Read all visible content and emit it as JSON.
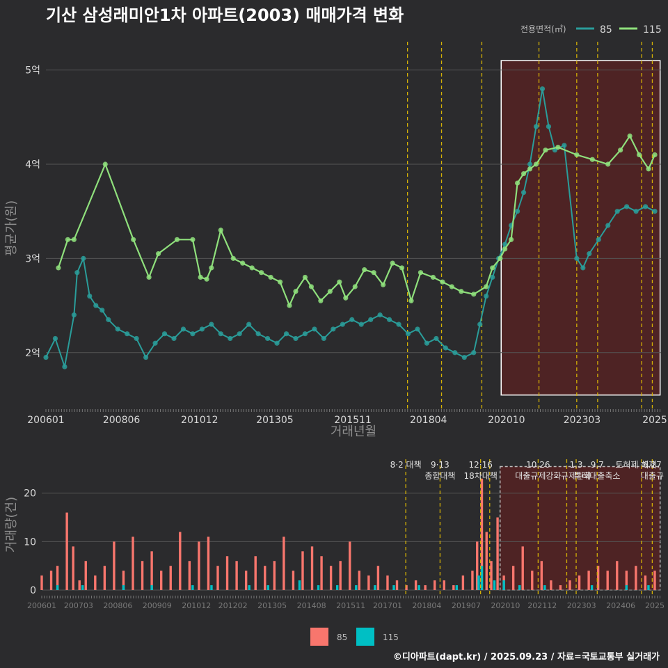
{
  "title": "기산 삼성래미안1차 아파트(2003) 매매가격 변화",
  "footer": "©디아파트(dapt.kr) / 2025.09.23 / 자료=국토교통부 실거래가",
  "colors": {
    "background": "#2b2b2d",
    "line85": "#2a9d9a",
    "line115": "#8fe07c",
    "bar85": "#f8766d",
    "bar115": "#00bfc4",
    "vline": "#d4b106",
    "highlight": "#6b1e1e"
  },
  "chart_data": [
    {
      "type": "line",
      "title": "기산 삼성래미안1차 아파트(2003) 매매가격 변화",
      "xlabel": "거래년월",
      "ylabel": "평균가(원)",
      "ylim": [
        1.4,
        5.3
      ],
      "yticks": [
        "2억",
        "3억",
        "4억",
        "5억"
      ],
      "ytick_values": [
        2,
        3,
        4,
        5
      ],
      "xticks": [
        "200601",
        "200806",
        "201012",
        "201305",
        "201511",
        "201804",
        "202010",
        "202303",
        "2025"
      ],
      "xtick_values": [
        2006.0,
        2008.42,
        2010.92,
        2013.33,
        2015.83,
        2018.25,
        2020.75,
        2023.17,
        2025.5
      ],
      "xlim": [
        2006.0,
        2025.7
      ],
      "legend_title": "전용면적(㎡)",
      "legend_position": "top-right",
      "highlight_range": [
        2020.58,
        2025.67
      ],
      "event_lines": [
        2017.58,
        2018.67,
        2019.96,
        2021.79,
        2023.0,
        2023.67,
        2025.08,
        2025.42
      ],
      "series": [
        {
          "name": "85",
          "x": [
            2006.0,
            2006.3,
            2006.6,
            2006.9,
            2007.0,
            2007.2,
            2007.4,
            2007.6,
            2007.8,
            2008.0,
            2008.3,
            2008.6,
            2008.9,
            2009.2,
            2009.5,
            2009.8,
            2010.1,
            2010.4,
            2010.7,
            2011.0,
            2011.3,
            2011.6,
            2011.9,
            2012.2,
            2012.5,
            2012.8,
            2013.1,
            2013.4,
            2013.7,
            2014.0,
            2014.3,
            2014.6,
            2014.9,
            2015.2,
            2015.5,
            2015.8,
            2016.1,
            2016.4,
            2016.7,
            2017.0,
            2017.3,
            2017.6,
            2017.9,
            2018.2,
            2018.5,
            2018.8,
            2019.1,
            2019.4,
            2019.7,
            2019.9,
            2020.1,
            2020.3,
            2020.5,
            2020.7,
            2020.9,
            2021.1,
            2021.3,
            2021.5,
            2021.7,
            2021.9,
            2022.1,
            2022.3,
            2022.6,
            2023.0,
            2023.2,
            2023.4,
            2023.7,
            2024.0,
            2024.3,
            2024.6,
            2024.9,
            2025.2,
            2025.5
          ],
          "y": [
            1.95,
            2.15,
            1.85,
            2.4,
            2.85,
            3.0,
            2.6,
            2.5,
            2.45,
            2.35,
            2.25,
            2.2,
            2.15,
            1.95,
            2.1,
            2.2,
            2.15,
            2.25,
            2.2,
            2.25,
            2.3,
            2.2,
            2.15,
            2.2,
            2.3,
            2.2,
            2.15,
            2.1,
            2.2,
            2.15,
            2.2,
            2.25,
            2.15,
            2.25,
            2.3,
            2.35,
            2.3,
            2.35,
            2.4,
            2.35,
            2.3,
            2.2,
            2.25,
            2.1,
            2.15,
            2.05,
            2.0,
            1.95,
            2.0,
            2.3,
            2.6,
            2.8,
            3.0,
            3.15,
            3.35,
            3.5,
            3.7,
            4.0,
            4.4,
            4.8,
            4.4,
            4.15,
            4.2,
            3.0,
            2.9,
            3.05,
            3.2,
            3.35,
            3.5,
            3.55,
            3.5,
            3.55,
            3.5
          ]
        },
        {
          "name": "115",
          "x": [
            2006.4,
            2006.7,
            2006.9,
            2007.9,
            2008.8,
            2009.3,
            2009.6,
            2010.2,
            2010.7,
            2010.95,
            2011.15,
            2011.3,
            2011.6,
            2012.0,
            2012.3,
            2012.6,
            2012.9,
            2013.2,
            2013.5,
            2013.8,
            2014.0,
            2014.3,
            2014.5,
            2014.8,
            2015.1,
            2015.4,
            2015.6,
            2015.9,
            2016.2,
            2016.5,
            2016.8,
            2017.1,
            2017.4,
            2017.7,
            2018.0,
            2018.4,
            2018.7,
            2019.0,
            2019.3,
            2019.7,
            2020.1,
            2020.3,
            2020.55,
            2020.7,
            2020.9,
            2021.1,
            2021.3,
            2021.5,
            2021.7,
            2022.0,
            2022.4,
            2023.0,
            2023.5,
            2024.0,
            2024.4,
            2024.7,
            2025.0,
            2025.3,
            2025.5
          ],
          "y": [
            2.9,
            3.2,
            3.2,
            4.0,
            3.2,
            2.8,
            3.05,
            3.2,
            3.2,
            2.8,
            2.78,
            2.9,
            3.3,
            3.0,
            2.95,
            2.9,
            2.85,
            2.8,
            2.75,
            2.5,
            2.65,
            2.8,
            2.7,
            2.55,
            2.65,
            2.75,
            2.58,
            2.7,
            2.88,
            2.85,
            2.72,
            2.95,
            2.9,
            2.55,
            2.85,
            2.8,
            2.75,
            2.7,
            2.65,
            2.62,
            2.7,
            2.9,
            3.0,
            3.1,
            3.2,
            3.8,
            3.9,
            3.95,
            4.0,
            4.15,
            4.18,
            4.1,
            4.05,
            4.0,
            4.15,
            4.3,
            4.1,
            3.95,
            4.1
          ]
        }
      ]
    },
    {
      "type": "bar",
      "xlabel": "",
      "ylabel": "거래량(건)",
      "ylim": [
        0,
        27
      ],
      "yticks": [
        "0",
        "10",
        "20"
      ],
      "ytick_values": [
        0,
        10,
        20
      ],
      "xticks": [
        "200601",
        "200703",
        "200806",
        "200909",
        "201012",
        "201202",
        "201305",
        "201408",
        "201511",
        "201701",
        "201804",
        "201907",
        "202010",
        "202112",
        "202303",
        "202406",
        "2025"
      ],
      "xtick_values": [
        2006.0,
        2007.17,
        2008.42,
        2009.67,
        2010.92,
        2012.08,
        2013.33,
        2014.58,
        2015.83,
        2017.0,
        2018.25,
        2019.5,
        2020.75,
        2021.92,
        2023.17,
        2024.42,
        2025.5
      ],
      "xlim": [
        2006.0,
        2025.7
      ],
      "legend_position": "bottom",
      "annotations": [
        {
          "x": 2017.58,
          "label": "8·2 대책"
        },
        {
          "x": 2018.67,
          "label": "9·13"
        },
        {
          "x": 2018.67,
          "label": "종합대책"
        },
        {
          "x": 2019.96,
          "label": "12·16"
        },
        {
          "x": 2019.96,
          "label": "18차대책"
        },
        {
          "x": 2021.79,
          "label": "10.26"
        },
        {
          "x": 2021.79,
          "label": "대출규제강화"
        },
        {
          "x": 2023.0,
          "label": "1.3"
        },
        {
          "x": 2023.0,
          "label": "규제완화"
        },
        {
          "x": 2023.67,
          "label": "9.7"
        },
        {
          "x": 2023.67,
          "label": "특례대출축소"
        },
        {
          "x": 2024.9,
          "label": "토허제 해제"
        },
        {
          "x": 2025.42,
          "label": "6.27"
        },
        {
          "x": 2025.42,
          "label": "대출규"
        }
      ],
      "event_lines": [
        2017.58,
        2018.67,
        2019.96,
        2020.25,
        2021.79,
        2022.7,
        2023.0,
        2023.67,
        2025.08,
        2025.42
      ],
      "series": [
        {
          "name": "85",
          "x": [
            2006.0,
            2006.3,
            2006.5,
            2006.8,
            2007.0,
            2007.2,
            2007.4,
            2007.7,
            2008.0,
            2008.3,
            2008.6,
            2008.9,
            2009.2,
            2009.5,
            2009.8,
            2010.1,
            2010.4,
            2010.7,
            2011.0,
            2011.3,
            2011.6,
            2011.9,
            2012.2,
            2012.5,
            2012.8,
            2013.1,
            2013.4,
            2013.7,
            2014.0,
            2014.3,
            2014.6,
            2014.9,
            2015.2,
            2015.5,
            2015.8,
            2016.1,
            2016.4,
            2016.7,
            2017.0,
            2017.3,
            2017.6,
            2017.9,
            2018.2,
            2018.5,
            2018.8,
            2019.1,
            2019.4,
            2019.7,
            2019.85,
            2020.0,
            2020.15,
            2020.3,
            2020.5,
            2020.7,
            2021.0,
            2021.3,
            2021.6,
            2021.9,
            2022.2,
            2022.5,
            2022.8,
            2023.1,
            2023.4,
            2023.7,
            2024.0,
            2024.3,
            2024.6,
            2024.9,
            2025.2,
            2025.5
          ],
          "values": [
            3,
            4,
            5,
            16,
            9,
            2,
            6,
            3,
            5,
            10,
            4,
            11,
            6,
            8,
            4,
            5,
            12,
            6,
            10,
            11,
            5,
            7,
            6,
            4,
            7,
            5,
            6,
            11,
            4,
            8,
            9,
            7,
            5,
            6,
            10,
            4,
            3,
            5,
            3,
            2,
            1,
            2,
            1,
            2,
            2,
            1,
            3,
            4,
            10,
            23,
            12,
            6,
            15,
            3,
            5,
            9,
            4,
            6,
            2,
            1,
            2,
            3,
            4,
            5,
            4,
            6,
            4,
            5,
            3,
            4
          ]
        },
        {
          "name": "115",
          "x": [
            2006.5,
            2007.3,
            2008.6,
            2009.5,
            2010.8,
            2011.4,
            2012.6,
            2013.2,
            2014.2,
            2014.8,
            2015.4,
            2016.0,
            2016.6,
            2017.2,
            2018.0,
            2019.2,
            2019.9,
            2020.0,
            2020.4,
            2020.7,
            2021.2,
            2022.0,
            2023.5,
            2024.6,
            2025.3
          ],
          "values": [
            1,
            1,
            1,
            1,
            1,
            1,
            1,
            1,
            2,
            1,
            1,
            1,
            1,
            1,
            1,
            1,
            3,
            5,
            2,
            2,
            1,
            1,
            1,
            1,
            1
          ]
        }
      ]
    }
  ]
}
